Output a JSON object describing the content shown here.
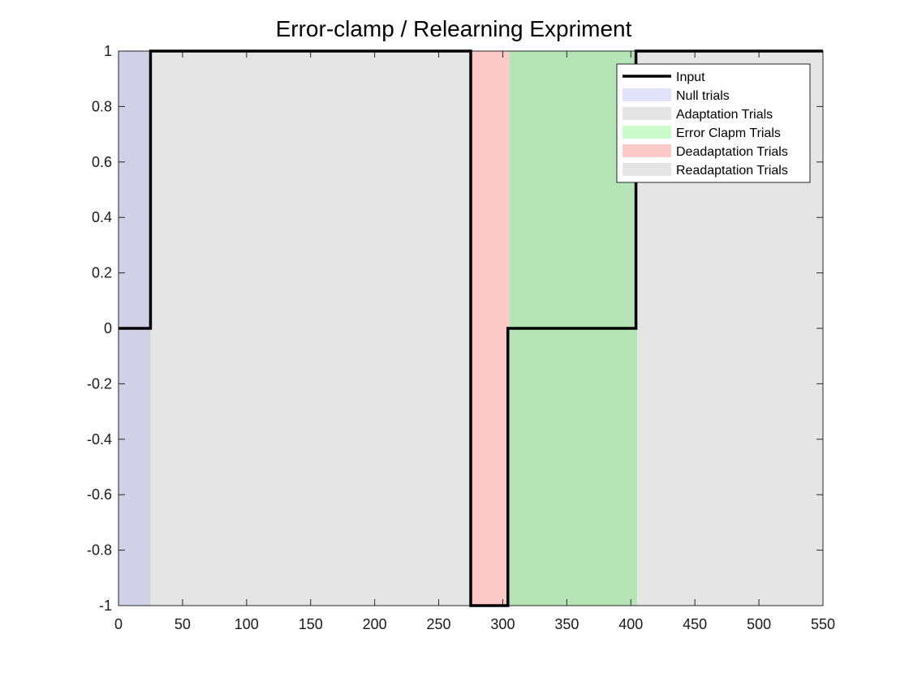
{
  "chart_data": {
    "type": "line",
    "title": "Error-clamp / Relearning Expriment",
    "xlabel": "",
    "ylabel": "",
    "xlim": [
      0,
      550
    ],
    "ylim": [
      -1,
      1
    ],
    "xticks": [
      0,
      50,
      100,
      150,
      200,
      250,
      300,
      350,
      400,
      450,
      500,
      550
    ],
    "yticks": [
      -1,
      -0.8,
      -0.6,
      -0.4,
      -0.2,
      0,
      0.2,
      0.4,
      0.6,
      0.8,
      1
    ],
    "grid": false,
    "legend_position": "top-right",
    "phases": [
      {
        "name": "Null trials",
        "x_start": 0,
        "x_end": 25,
        "color": "#d0d0e6",
        "legend_color": "#e2e2fb"
      },
      {
        "name": "Adaptation Trials",
        "x_start": 25,
        "x_end": 275,
        "color": "#e5e5e5",
        "legend_color": "#e5e5e5"
      },
      {
        "name": "Deadaptation Trials",
        "x_start": 275,
        "x_end": 305,
        "color": "#fdc9c9",
        "legend_color": "#fdc9c9"
      },
      {
        "name": "Error Clapm Trials",
        "x_start": 305,
        "x_end": 405,
        "color": "#b7e4b7",
        "legend_color": "#ccfccc"
      },
      {
        "name": "Readaptation Trials",
        "x_start": 405,
        "x_end": 550,
        "color": "#e5e5e5",
        "legend_color": "#e5e5e5"
      }
    ],
    "legend_order": [
      "Input",
      "Null trials",
      "Adaptation Trials",
      "Error Clapm Trials",
      "Deadaptation Trials",
      "Readaptation Trials"
    ],
    "series": [
      {
        "name": "Input",
        "color": "#000000",
        "x": [
          0,
          25,
          25,
          275,
          275,
          304,
          304,
          404,
          404,
          550
        ],
        "y": [
          0,
          0,
          1,
          1,
          -1,
          -1,
          0,
          0,
          1,
          1
        ]
      }
    ]
  }
}
